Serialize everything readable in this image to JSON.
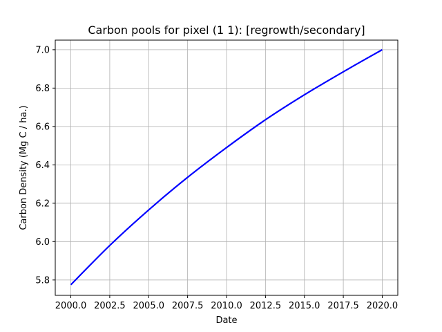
{
  "chart_data": {
    "type": "line",
    "title": "Carbon pools for pixel (1 1): [regrowth/secondary]",
    "xlabel": "Date",
    "ylabel": "Carbon Density (Mg C / ha.)",
    "xlim": [
      1999.0,
      2021.0
    ],
    "ylim": [
      5.72,
      7.05
    ],
    "xticks": [
      2000.0,
      2002.5,
      2005.0,
      2007.5,
      2010.0,
      2012.5,
      2015.0,
      2017.5,
      2020.0
    ],
    "xtick_labels": [
      "2000.0",
      "2002.5",
      "2005.0",
      "2007.5",
      "2010.0",
      "2012.5",
      "2015.0",
      "2017.5",
      "2020.0"
    ],
    "yticks": [
      5.8,
      6.0,
      6.2,
      6.4,
      6.6,
      6.8,
      7.0
    ],
    "ytick_labels": [
      "5.8",
      "6.0",
      "6.2",
      "6.4",
      "6.6",
      "6.8",
      "7.0"
    ],
    "grid": true,
    "series": [
      {
        "color": "#0000ff",
        "x": [
          2000.0,
          2002.5,
          2005.0,
          2007.5,
          2010.0,
          2012.5,
          2015.0,
          2017.5,
          2020.0
        ],
        "y": [
          5.775,
          5.98,
          6.165,
          6.335,
          6.49,
          6.635,
          6.765,
          6.885,
          7.0
        ]
      }
    ]
  }
}
